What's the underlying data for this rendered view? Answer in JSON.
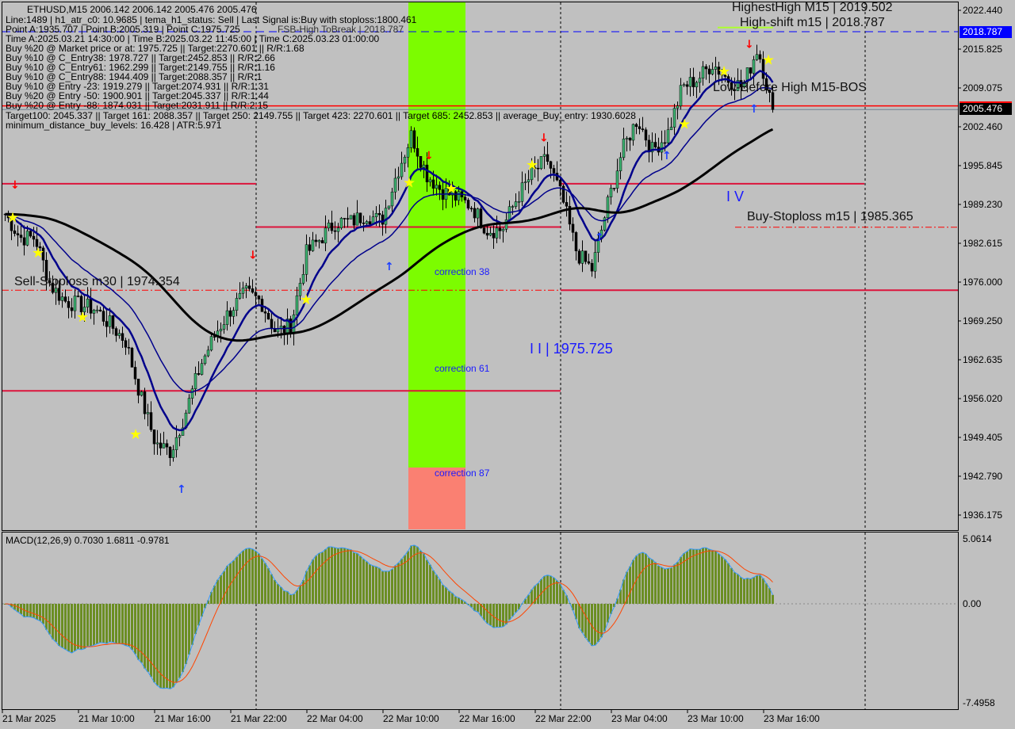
{
  "header": {
    "title": "ETHUSD,M15  2006.142 2006.142 2005.476 2005.476",
    "lines": [
      "Line:1489 | h1_atr_c0: 10.9685 | tema_h1_status: Sell | Last Signal is:Buy with stoploss:1800.461",
      "Point A:1935.707 | Point B:2005.319 | Point C:1975.725",
      "Time A:2025.03.21 14:30:00 | Time B:2025.03.22 11:45:00 | Time C:2025.03.23 01:00:00",
      "Buy %20 @ Market price or at: 1975.725 || Target:2270.601 || R/R:1.68",
      "Buy %10 @ C_Entry38: 1978.727 || Target:2452.853 || R/R:2.66",
      "Buy %10 @ C_Entry61: 1962.299 || Target:2149.755 || R/R:1.16",
      "Buy %10 @ C_Entry88: 1944.409 || Target:2088.357 || R/R:1",
      "Buy %10 @ Entry -23: 1919.279 || Target:2074.931 || R/R:1.31",
      "Buy %20 @ Entry -50: 1900.901 || Target:2045.337 || R/R:1.44",
      "Buy %20 @ Entry -88: 1874.031 || Target:2031.911 || R/R:2.15",
      "Target100: 2045.337 || Target 161: 2088.357 || Target 250: 2149.755 || Target 423: 2270.601 || Target 685: 2452.853 || average_Buy_entry: 1930.6028",
      "minimum_distance_buy_levels: 16.428 | ATR:5.971"
    ],
    "fsb_label": "FSB-High ToBreak | 2018.787"
  },
  "annotations": {
    "highest_high": "HighestHigh   M15 | 2019.502",
    "high_shift": "High-shift m15 | 2018.787",
    "low_before_high": "Low-Before High   M15-BOS",
    "sell_stoploss": "Sell-Stoploss m30 | 1974.354",
    "buy_stoploss": "Buy-Stoploss m15 | 1985.365",
    "wave_ii": "I I | 1975.725",
    "wave_iv": "I V",
    "correction_38": "correction 38",
    "correction_61": "correction 61",
    "correction_87": "correction 87"
  },
  "chart_data": {
    "type": "candlestick",
    "symbol": "ETHUSD",
    "timeframe": "M15",
    "ylim": [
      1936.175,
      2022.44
    ],
    "y_ticks": [
      "2022.440",
      "2015.825",
      "2009.075",
      "2002.460",
      "1995.845",
      "1989.230",
      "1982.615",
      "1976.000",
      "1969.250",
      "1962.635",
      "1956.020",
      "1949.405",
      "1942.790",
      "1936.175"
    ],
    "x_ticks": [
      "21 Mar 2025",
      "21 Mar 10:00",
      "21 Mar 16:00",
      "21 Mar 22:00",
      "22 Mar 04:00",
      "22 Mar 10:00",
      "22 Mar 16:00",
      "22 Mar 22:00",
      "23 Mar 04:00",
      "23 Mar 10:00",
      "23 Mar 16:00"
    ],
    "approx_closes": [
      1987.63,
      1983.57,
      1983.57,
      1975.44,
      1972.73,
      1972.06,
      1971.38,
      1968.67,
      1965.96,
      1956.48,
      1948.36,
      1947.0,
      1953.78,
      1961.9,
      1967.32,
      1971.38,
      1974.09,
      1972.73,
      1967.32,
      1968.67,
      1980.86,
      1983.57,
      1986.28,
      1986.28,
      1987.63,
      1986.28,
      1994.41,
      2001.18,
      1994.41,
      1991.7,
      1990.34,
      1988.99,
      1984.93,
      1984.93,
      1990.34,
      1994.41,
      1997.11,
      1990.34,
      1980.86,
      1978.15,
      1988.99,
      1998.47,
      2003.89,
      1998.47,
      2001.18,
      2009.31,
      2010.66,
      2013.37,
      2010.66,
      2009.31,
      2016.08,
      2005.476
    ],
    "price_tags": {
      "high_shift": "2018.787",
      "current": "2005.476"
    },
    "levels": [
      {
        "price": 2018.787,
        "style": "dashed",
        "color": "#0000ff"
      },
      {
        "price": 2006.1,
        "style": "solid",
        "color": "#ff0000"
      },
      {
        "price": 1992.8,
        "style": "solid",
        "color": "#dc143c"
      },
      {
        "price": 1985.4,
        "style": "solid",
        "color": "#dc143c"
      },
      {
        "price": 1985.365,
        "style": "dashdot",
        "color": "#ff0000"
      },
      {
        "price": 1974.6,
        "style": "solid",
        "color": "#dc143c"
      },
      {
        "price": 1957.4,
        "style": "solid",
        "color": "#dc143c"
      }
    ],
    "zones": {
      "correction_color": "#7cfc00",
      "beyond_color": "#fa8072"
    },
    "macd": {
      "label": "MACD(12,26,9) 0.7030 1.6811 -0.9781",
      "ylim": [
        -7.4958,
        5.0614
      ],
      "y_ticks": [
        "5.0614",
        "0.00",
        "-7.4958"
      ],
      "colors": {
        "histogram": "#6b8e23",
        "macd": "#3399ff",
        "signal": "#ff4500"
      }
    }
  }
}
